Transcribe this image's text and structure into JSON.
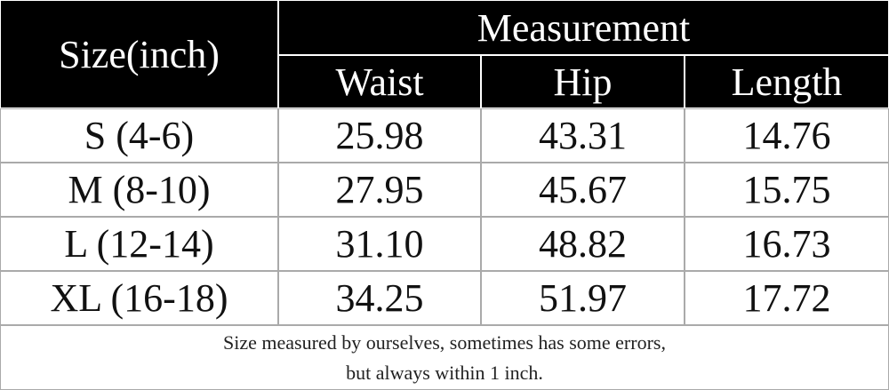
{
  "table": {
    "header": {
      "size": "Size(inch)",
      "group": "Measurement",
      "columns": [
        "Waist",
        "Hip",
        "Length"
      ]
    },
    "rows": [
      [
        "S (4-6)",
        "25.98",
        "43.31",
        "14.76"
      ],
      [
        "M (8-10)",
        "27.95",
        "45.67",
        "15.75"
      ],
      [
        "L (12-14)",
        "31.10",
        "48.82",
        "16.73"
      ],
      [
        "XL (16-18)",
        "34.25",
        "51.97",
        "17.72"
      ]
    ],
    "note": [
      "Size measured by ourselves, sometimes has some errors,",
      "but always within 1 inch."
    ]
  }
}
